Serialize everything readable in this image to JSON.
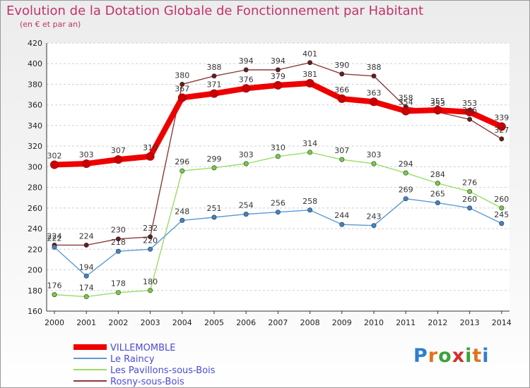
{
  "title": "Evolution de la Dotation Globale de Fonctionnement par Habitant",
  "subtitle": "(en € et par an)",
  "logo": {
    "letters": [
      "P",
      "r",
      "o",
      "x",
      "i",
      "t",
      "i"
    ],
    "colors": [
      "#2d7fd0",
      "#e4721c",
      "#3aa33a",
      "#d12f2f",
      "#3aa33a",
      "#e4721c",
      "#2d7fd0"
    ]
  },
  "chart_data": {
    "type": "line",
    "title": "Evolution de la Dotation Globale de Fonctionnement par Habitant",
    "subtitle": "(en € et par an)",
    "x": [
      "2000",
      "2001",
      "2002",
      "2003",
      "2004",
      "2005",
      "2006",
      "2007",
      "2008",
      "2009",
      "2010",
      "2011",
      "2012",
      "2013",
      "2014"
    ],
    "ylim": [
      160,
      420
    ],
    "yticks": [
      "160",
      "180",
      "200",
      "220",
      "240",
      "260",
      "280",
      "300",
      "320",
      "340",
      "360",
      "380",
      "400",
      "420"
    ],
    "grid": "horizontal-dashed",
    "legend": "bottom-left",
    "series": [
      {
        "name": "VILLEMOMBLE",
        "color": "#ee0000",
        "marker": "#cc0000",
        "values": [
          302,
          303,
          307,
          310,
          367,
          371,
          376,
          379,
          381,
          366,
          363,
          354,
          355,
          353,
          339
        ],
        "labels": [
          "302",
          "303",
          "307",
          "310",
          "367",
          "371",
          "376",
          "379",
          "381",
          "366",
          "363",
          "354",
          "355",
          "353",
          "339"
        ]
      },
      {
        "name": "Le Raincy",
        "color": "#5b9bd5",
        "marker": "#3d85c6",
        "values": [
          222,
          194,
          218,
          220,
          248,
          251,
          254,
          256,
          258,
          244,
          243,
          269,
          265,
          260,
          245
        ],
        "labels": [
          "222",
          "194",
          "218",
          "220",
          "248",
          "251",
          "254",
          "256",
          "258",
          "244",
          "243",
          "269",
          "265",
          "260",
          "245"
        ]
      },
      {
        "name": "Les Pavillons-sous-Bois",
        "color": "#99dd66",
        "marker": "#77cc44",
        "values": [
          176,
          174,
          178,
          180,
          296,
          299,
          303,
          310,
          314,
          307,
          303,
          294,
          284,
          276,
          260
        ],
        "labels": [
          "176",
          "174",
          "178",
          "180",
          "296",
          "299",
          "303",
          "310",
          "314",
          "307",
          "303",
          "294",
          "284",
          "276",
          "260"
        ]
      },
      {
        "name": "Rosny-sous-Bois",
        "color": "#8b3a3a",
        "marker": "#6b1a1a",
        "values": [
          224,
          224,
          230,
          232,
          380,
          388,
          394,
          394,
          401,
          390,
          388,
          358,
          353,
          346,
          327
        ],
        "labels": [
          "224",
          "224",
          "230",
          "232",
          "380",
          "388",
          "394",
          "394",
          "401",
          "390",
          "388",
          "358",
          "353",
          "346",
          "327"
        ]
      }
    ]
  }
}
